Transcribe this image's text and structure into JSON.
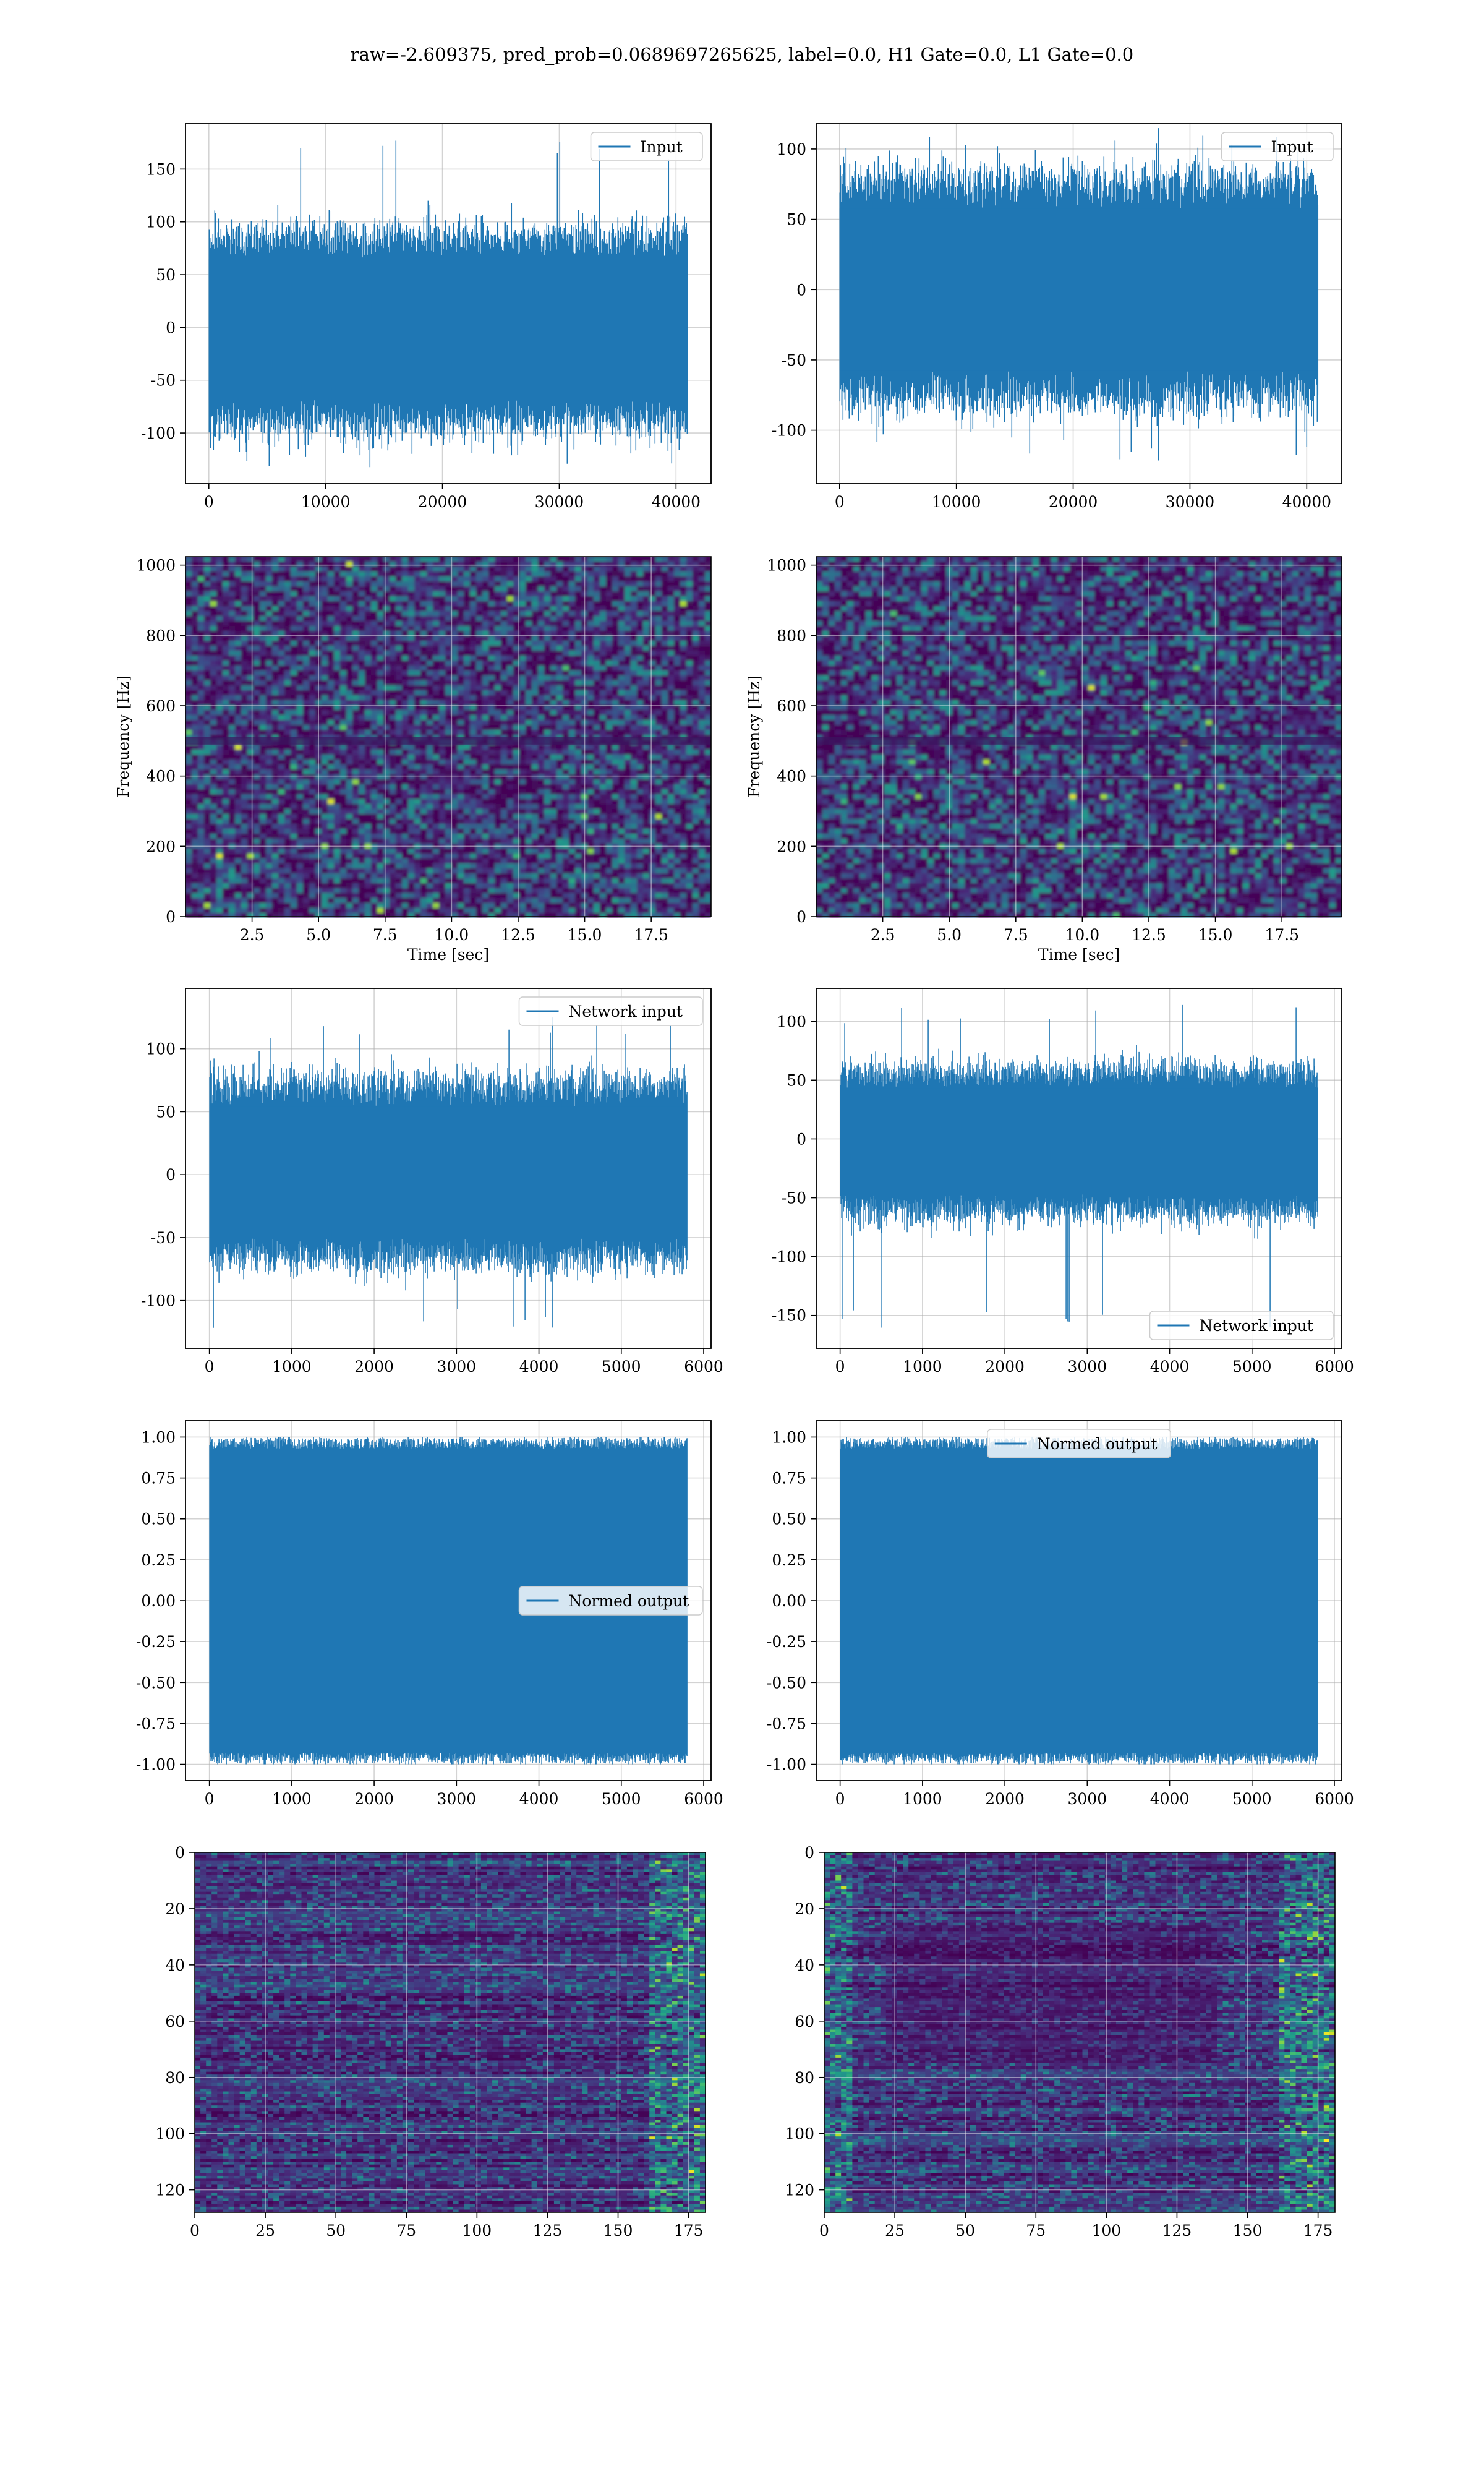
{
  "figure": {
    "suptitle": "raw=-2.609375, pred_prob=0.0689697265625, label=0.0, H1 Gate=0.0, L1 Gate=0.0"
  },
  "chart_data": [
    {
      "id": "input-h1",
      "type": "line",
      "series": [
        {
          "name": "Input",
          "n_points": 40960,
          "amplitude_envelope": {
            "typical_max": 90,
            "typical_min": -95,
            "peak_max": 180,
            "peak_min": -130
          }
        }
      ],
      "xlim": [
        -2000,
        43000
      ],
      "ylim": [
        -148,
        193
      ],
      "xticks": [
        0,
        10000,
        20000,
        30000,
        40000
      ],
      "yticks": [
        -100,
        -50,
        0,
        50,
        100,
        150
      ],
      "legend": "upper right",
      "grid": true
    },
    {
      "id": "input-l1",
      "type": "line",
      "series": [
        {
          "name": "Input",
          "n_points": 40960,
          "amplitude_envelope": {
            "typical_max": 80,
            "typical_min": -80,
            "peak_max": 115,
            "peak_min": -125
          }
        }
      ],
      "xlim": [
        -2000,
        43000
      ],
      "ylim": [
        -138,
        118
      ],
      "xticks": [
        0,
        10000,
        20000,
        30000,
        40000
      ],
      "yticks": [
        -100,
        -50,
        0,
        50,
        100
      ],
      "legend": "upper right",
      "grid": true
    },
    {
      "id": "spectrogram-h1",
      "type": "heatmap",
      "colormap": "viridis",
      "xlabel": "Time [sec]",
      "ylabel": "Frequency [Hz]",
      "xlim": [
        0,
        19.75
      ],
      "ylim": [
        0,
        1024
      ],
      "xticks": [
        2.5,
        5.0,
        7.5,
        10.0,
        12.5,
        15.0,
        17.5
      ],
      "yticks": [
        0,
        200,
        400,
        600,
        800,
        1000
      ],
      "grid": true
    },
    {
      "id": "spectrogram-l1",
      "type": "heatmap",
      "colormap": "viridis",
      "xlabel": "Time [sec]",
      "ylabel": "Frequency [Hz]",
      "xlim": [
        0,
        19.75
      ],
      "ylim": [
        0,
        1024
      ],
      "xticks": [
        2.5,
        5.0,
        7.5,
        10.0,
        12.5,
        15.0,
        17.5
      ],
      "yticks": [
        0,
        200,
        400,
        600,
        800,
        1000
      ],
      "grid": true
    },
    {
      "id": "network-input-h1",
      "type": "line",
      "series": [
        {
          "name": "Network input",
          "n_points": 5800,
          "amplitude_envelope": {
            "typical_max": 75,
            "typical_min": -70,
            "peak_max": 125,
            "peak_min": -125
          }
        }
      ],
      "xlim": [
        -290,
        6090
      ],
      "ylim": [
        -138,
        148
      ],
      "xticks": [
        0,
        1000,
        2000,
        3000,
        4000,
        5000,
        6000
      ],
      "yticks": [
        -100,
        -50,
        0,
        50,
        100
      ],
      "legend": "upper right",
      "grid": true
    },
    {
      "id": "network-input-l1",
      "type": "line",
      "series": [
        {
          "name": "Network input",
          "n_points": 5800,
          "amplitude_envelope": {
            "typical_max": 60,
            "typical_min": -65,
            "peak_max": 115,
            "peak_min": -163
          }
        }
      ],
      "xlim": [
        -290,
        6090
      ],
      "ylim": [
        -178,
        128
      ],
      "xticks": [
        0,
        1000,
        2000,
        3000,
        4000,
        5000,
        6000
      ],
      "yticks": [
        -150,
        -100,
        -50,
        0,
        50,
        100
      ],
      "legend": "lower right",
      "grid": true
    },
    {
      "id": "normed-output-h1",
      "type": "line",
      "series": [
        {
          "name": "Normed output",
          "n_points": 5800,
          "amplitude_envelope": {
            "typical_max": 0.95,
            "typical_min": -0.95,
            "peak_max": 1.0,
            "peak_min": -1.0
          }
        }
      ],
      "xlim": [
        -290,
        6090
      ],
      "ylim": [
        -1.1,
        1.1
      ],
      "xticks": [
        0,
        1000,
        2000,
        3000,
        4000,
        5000,
        6000
      ],
      "yticks": [
        -1.0,
        -0.75,
        -0.5,
        -0.25,
        0.0,
        0.25,
        0.5,
        0.75,
        1.0
      ],
      "legend": "center right",
      "grid": true
    },
    {
      "id": "normed-output-l1",
      "type": "line",
      "series": [
        {
          "name": "Normed output",
          "n_points": 5800,
          "amplitude_envelope": {
            "typical_max": 0.95,
            "typical_min": -0.95,
            "peak_max": 1.0,
            "peak_min": -1.0
          }
        }
      ],
      "xlim": [
        -290,
        6090
      ],
      "ylim": [
        -1.1,
        1.1
      ],
      "xticks": [
        0,
        1000,
        2000,
        3000,
        4000,
        5000,
        6000
      ],
      "yticks": [
        -1.0,
        -0.75,
        -0.5,
        -0.25,
        0.0,
        0.25,
        0.5,
        0.75,
        1.0
      ],
      "legend": "upper center",
      "grid": true
    },
    {
      "id": "feature-map-h1",
      "type": "heatmap",
      "colormap": "viridis",
      "xlim": [
        0,
        181
      ],
      "ylim": [
        128,
        0
      ],
      "xticks": [
        0,
        25,
        50,
        75,
        100,
        125,
        150,
        175
      ],
      "yticks": [
        0,
        20,
        40,
        60,
        80,
        100,
        120
      ],
      "grid": true
    },
    {
      "id": "feature-map-l1",
      "type": "heatmap",
      "colormap": "viridis",
      "xlim": [
        0,
        181
      ],
      "ylim": [
        128,
        0
      ],
      "xticks": [
        0,
        25,
        50,
        75,
        100,
        125,
        150,
        175
      ],
      "yticks": [
        0,
        20,
        40,
        60,
        80,
        100,
        120
      ],
      "grid": true
    }
  ]
}
